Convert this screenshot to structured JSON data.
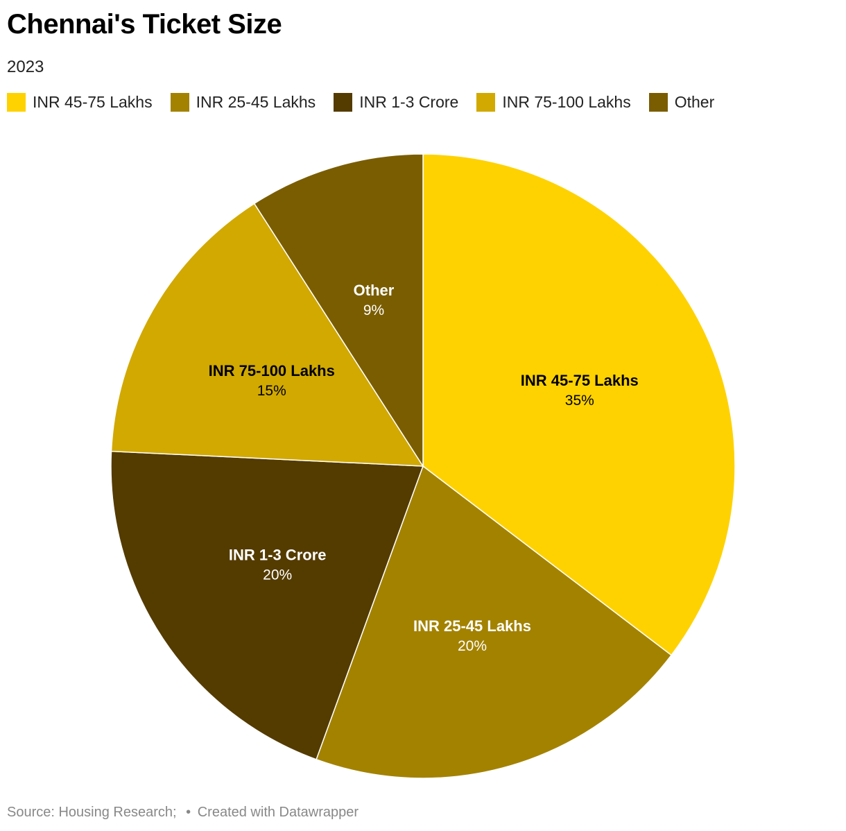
{
  "header": {
    "title": "Chennai's Ticket Size",
    "subtitle": "2023"
  },
  "footer": {
    "source": "Source: Housing Research;",
    "separator": "•",
    "credit": "Created with Datawrapper"
  },
  "colors": {
    "INR 45-75 Lakhs": "#fed200",
    "INR 25-45 Lakhs": "#a38200",
    "INR 1-3 Crore": "#543b00",
    "INR 75-100 Lakhs": "#d1a900",
    "Other": "#7a5d00"
  },
  "chart_data": {
    "type": "pie",
    "title": "Chennai's Ticket Size",
    "subtitle": "2023",
    "legend_position": "top",
    "slices": [
      {
        "label": "INR 45-75 Lakhs",
        "value": 35,
        "display": "35%",
        "color": "#fed200",
        "text_color": "#000000"
      },
      {
        "label": "INR 25-45 Lakhs",
        "value": 20,
        "display": "20%",
        "color": "#a38200",
        "text_color": "#ffffff"
      },
      {
        "label": "INR 1-3 Crore",
        "value": 20,
        "display": "20%",
        "color": "#543b00",
        "text_color": "#ffffff"
      },
      {
        "label": "INR 75-100 Lakhs",
        "value": 15,
        "display": "15%",
        "color": "#d1a900",
        "text_color": "#000000"
      },
      {
        "label": "Other",
        "value": 9,
        "display": "9%",
        "color": "#7a5d00",
        "text_color": "#ffffff"
      }
    ]
  }
}
